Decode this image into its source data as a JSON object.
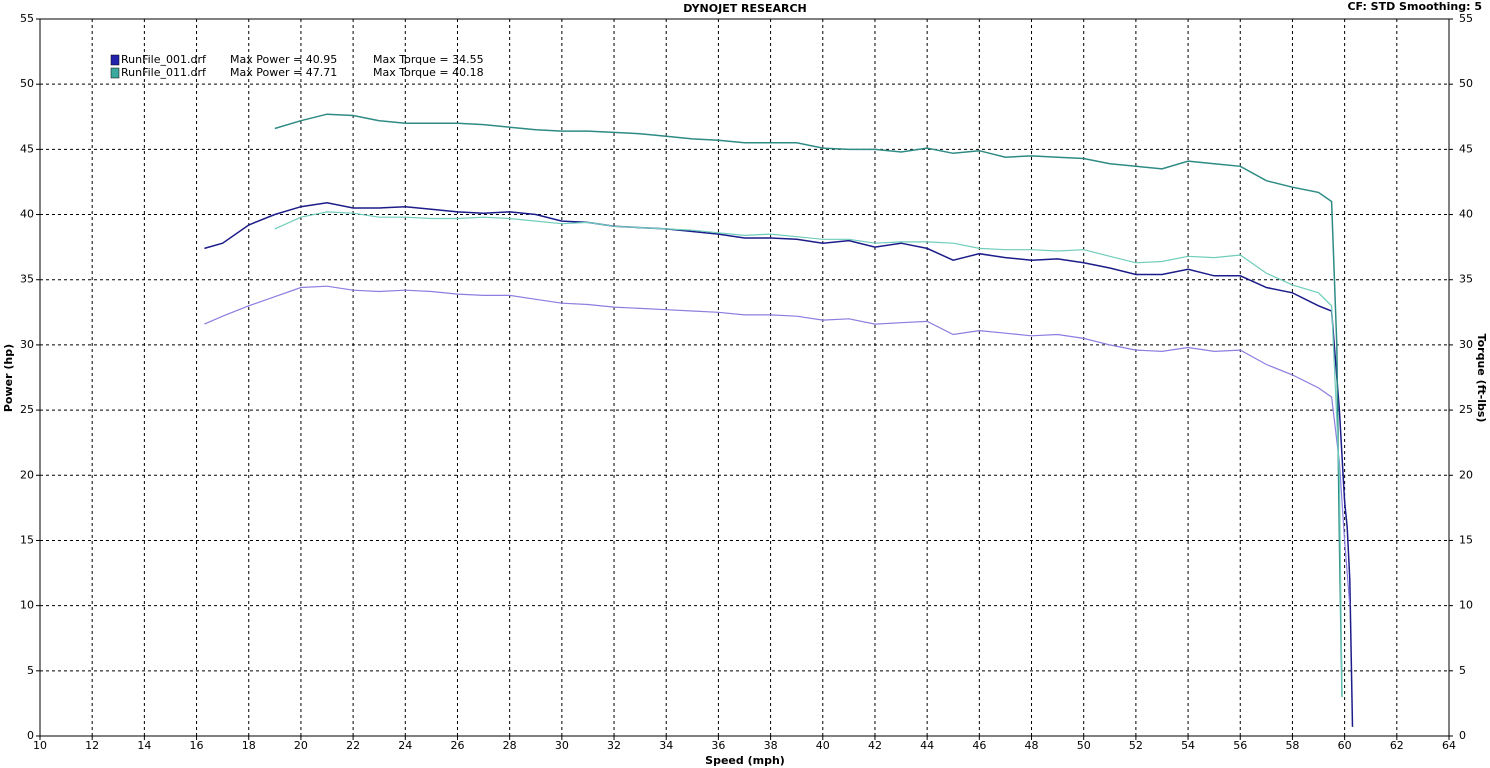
{
  "chart_data": {
    "type": "line",
    "title": "DYNOJET RESEARCH",
    "settings_label": "CF: STD  Smoothing: 5",
    "x_label": "Speed (mph)",
    "y_label": "Power (hp)",
    "y2_label": "Torque (ft-lbs)",
    "xlim": [
      10,
      64
    ],
    "xticks": [
      10,
      12,
      14,
      16,
      18,
      20,
      22,
      24,
      26,
      28,
      30,
      32,
      34,
      36,
      38,
      40,
      42,
      44,
      46,
      48,
      50,
      52,
      54,
      56,
      58,
      60,
      62,
      64
    ],
    "ylim": [
      0,
      55
    ],
    "yticks": [
      0,
      5,
      10,
      15,
      20,
      25,
      30,
      35,
      40,
      45,
      50,
      55
    ],
    "y2lim": [
      0,
      55
    ],
    "y2ticks": [
      0,
      5,
      10,
      15,
      20,
      25,
      30,
      35,
      40,
      45,
      50,
      55
    ],
    "grid": true,
    "legend": [
      {
        "file": "RunFile_001.drf",
        "power": "Max Power = 40.95",
        "torque": "Max Torque = 34.55",
        "color": "#2222aa"
      },
      {
        "file": "RunFile_011.drf",
        "power": "Max Power = 47.71",
        "torque": "Max Torque = 40.18",
        "color": "#3aa89c"
      }
    ],
    "series": [
      {
        "color": "#1c1c8a",
        "axis": "y",
        "x": [
          16.3,
          17,
          18,
          19,
          20,
          21,
          22,
          23,
          24,
          25,
          26,
          27,
          28,
          29,
          30,
          31,
          32,
          33,
          34,
          35,
          36,
          37,
          38,
          39,
          40,
          41,
          42,
          43,
          44,
          45,
          46,
          47,
          48,
          49,
          50,
          51,
          52,
          53,
          54,
          55,
          56,
          57,
          58,
          59,
          59.5,
          59.8,
          60,
          60.1,
          60.2,
          60.3
        ],
        "values": [
          37.4,
          37.8,
          39.2,
          40,
          40.6,
          40.9,
          40.5,
          40.5,
          40.6,
          40.4,
          40.2,
          40.1,
          40.2,
          40,
          39.5,
          39.4,
          39.1,
          39,
          38.9,
          38.7,
          38.5,
          38.2,
          38.2,
          38.1,
          37.8,
          38,
          37.5,
          37.8,
          37.4,
          36.5,
          37,
          36.7,
          36.5,
          36.6,
          36.3,
          35.9,
          35.4,
          35.4,
          35.8,
          35.3,
          35.3,
          34.4,
          34,
          33,
          32.6,
          25,
          18,
          16,
          12,
          0.7
        ]
      },
      {
        "color": "#8a7ee0",
        "axis": "y2",
        "x": [
          16.3,
          17,
          18,
          19,
          20,
          21,
          22,
          23,
          24,
          25,
          26,
          27,
          28,
          29,
          30,
          31,
          32,
          33,
          34,
          35,
          36,
          37,
          38,
          39,
          40,
          41,
          42,
          43,
          44,
          45,
          46,
          47,
          48,
          49,
          50,
          51,
          52,
          53,
          54,
          55,
          56,
          57,
          58,
          59,
          59.5,
          59.8,
          60,
          60.2
        ],
        "values": [
          31.6,
          32.2,
          33,
          33.7,
          34.4,
          34.5,
          34.2,
          34.1,
          34.2,
          34.1,
          33.9,
          33.8,
          33.8,
          33.5,
          33.2,
          33.1,
          32.9,
          32.8,
          32.7,
          32.6,
          32.5,
          32.3,
          32.3,
          32.2,
          31.9,
          32,
          31.6,
          31.7,
          31.8,
          30.8,
          31.1,
          30.9,
          30.7,
          30.8,
          30.5,
          30,
          29.6,
          29.5,
          29.8,
          29.5,
          29.6,
          28.5,
          27.7,
          26.7,
          26,
          21,
          15,
          10
        ]
      },
      {
        "color": "#2e8b84",
        "axis": "y",
        "x": [
          19,
          20,
          21,
          22,
          23,
          24,
          25,
          26,
          27,
          28,
          29,
          30,
          31,
          32,
          33,
          34,
          35,
          36,
          37,
          38,
          39,
          40,
          41,
          42,
          43,
          44,
          45,
          46,
          47,
          48,
          49,
          50,
          51,
          52,
          53,
          54,
          55,
          56,
          57,
          58,
          59,
          59.5,
          59.7,
          59.8,
          59.9
        ],
        "values": [
          46.6,
          47.2,
          47.7,
          47.6,
          47.2,
          47,
          47,
          47,
          46.9,
          46.7,
          46.5,
          46.4,
          46.4,
          46.3,
          46.2,
          46,
          45.8,
          45.7,
          45.5,
          45.5,
          45.5,
          45.1,
          45,
          45,
          44.8,
          45.1,
          44.7,
          44.9,
          44.4,
          44.5,
          44.4,
          44.3,
          43.9,
          43.7,
          43.5,
          44.1,
          43.9,
          43.7,
          42.6,
          42.1,
          41.7,
          41,
          30,
          15,
          3
        ]
      },
      {
        "color": "#6fcdbb",
        "axis": "y2",
        "x": [
          19,
          20,
          21,
          22,
          23,
          24,
          25,
          26,
          27,
          28,
          29,
          30,
          31,
          32,
          33,
          34,
          35,
          36,
          37,
          38,
          39,
          40,
          41,
          42,
          43,
          44,
          45,
          46,
          47,
          48,
          49,
          50,
          51,
          52,
          53,
          54,
          55,
          56,
          57,
          58,
          59,
          59.5,
          59.8,
          59.9
        ],
        "values": [
          38.9,
          39.8,
          40.2,
          40.1,
          39.8,
          39.8,
          39.7,
          39.7,
          39.8,
          39.7,
          39.5,
          39.3,
          39.4,
          39.1,
          39,
          38.9,
          38.8,
          38.6,
          38.4,
          38.5,
          38.3,
          38.1,
          38.1,
          37.8,
          37.9,
          37.9,
          37.8,
          37.4,
          37.3,
          37.3,
          37.2,
          37.3,
          36.8,
          36.3,
          36.4,
          36.8,
          36.7,
          36.9,
          35.5,
          34.6,
          34,
          33,
          20,
          3
        ]
      }
    ]
  }
}
